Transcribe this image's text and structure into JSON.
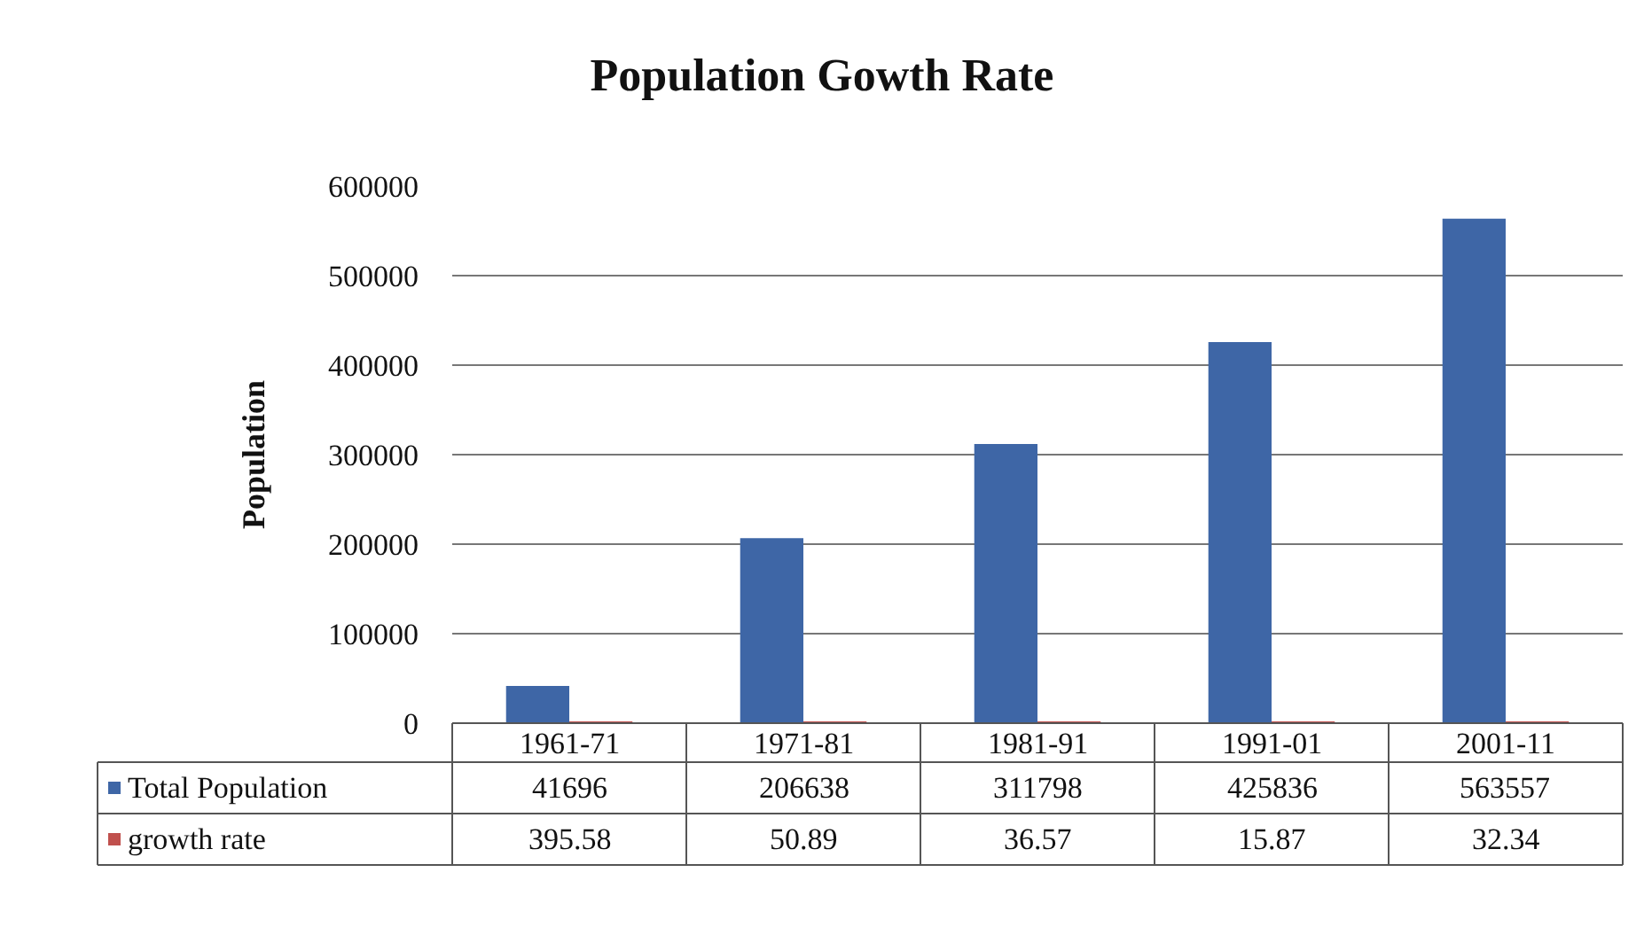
{
  "chart_data": {
    "type": "bar",
    "title": "Population Gowth Rate",
    "ylabel": "Population",
    "categories": [
      "1961-71",
      "1971-81",
      "1981-91",
      "1991-01",
      "2001-11"
    ],
    "series": [
      {
        "name": "Total Population",
        "color": "#3e66a6",
        "values": [
          41696,
          206638,
          311798,
          425836,
          563557
        ]
      },
      {
        "name": "growth rate",
        "color": "#c0504d",
        "values": [
          395.58,
          50.89,
          36.57,
          15.87,
          32.34
        ]
      }
    ],
    "ylim": [
      0,
      600000
    ],
    "yticks": [
      0,
      100000,
      200000,
      300000,
      400000,
      500000,
      600000
    ],
    "grid": "y",
    "legend": "bottom left",
    "data_labels": true
  }
}
